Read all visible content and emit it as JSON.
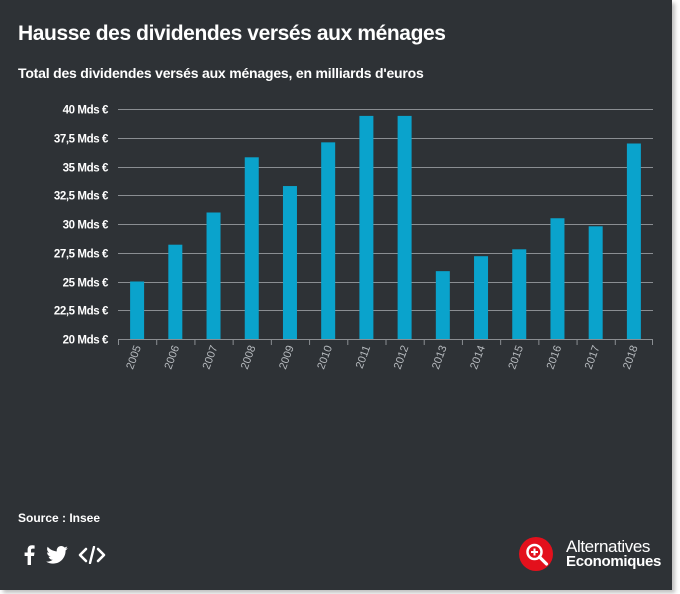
{
  "header": {
    "title": "Hausse des dividendes versés aux ménages",
    "subtitle": "Total des dividendes versés aux ménages, en milliards d'euros"
  },
  "footer": {
    "source": "Source : Insee",
    "brand_line1": "Alternatives",
    "brand_line2": "Economiques"
  },
  "icons": [
    "facebook-icon",
    "twitter-icon",
    "embed-code-icon",
    "magnifier-logo-icon"
  ],
  "colors": {
    "background": "#2e3236",
    "bar": "#0aa3cc",
    "grid": "#8a8e92",
    "text": "#ffffff",
    "logo": "#e3101c"
  },
  "chart_data": {
    "type": "bar",
    "categories": [
      "2005",
      "2006",
      "2007",
      "2008",
      "2009",
      "2010",
      "2011",
      "2012",
      "2013",
      "2014",
      "2015",
      "2016",
      "2017",
      "2018"
    ],
    "values": [
      25.0,
      28.2,
      31.0,
      35.8,
      33.3,
      37.1,
      39.4,
      39.4,
      25.9,
      27.2,
      27.8,
      30.5,
      29.8,
      37.0
    ],
    "ylim": [
      20,
      40
    ],
    "yticks": [
      20,
      22.5,
      25,
      27.5,
      30,
      32.5,
      35,
      37.5,
      40
    ],
    "ytick_labels": [
      "20 Mds €",
      "22,5 Mds €",
      "25 Mds €",
      "27,5 Mds €",
      "30 Mds €",
      "32,5 Mds €",
      "35 Mds €",
      "37,5 Mds €",
      "40 Mds €"
    ],
    "xlabel": "",
    "ylabel": "",
    "grid": true,
    "legend": "none"
  }
}
